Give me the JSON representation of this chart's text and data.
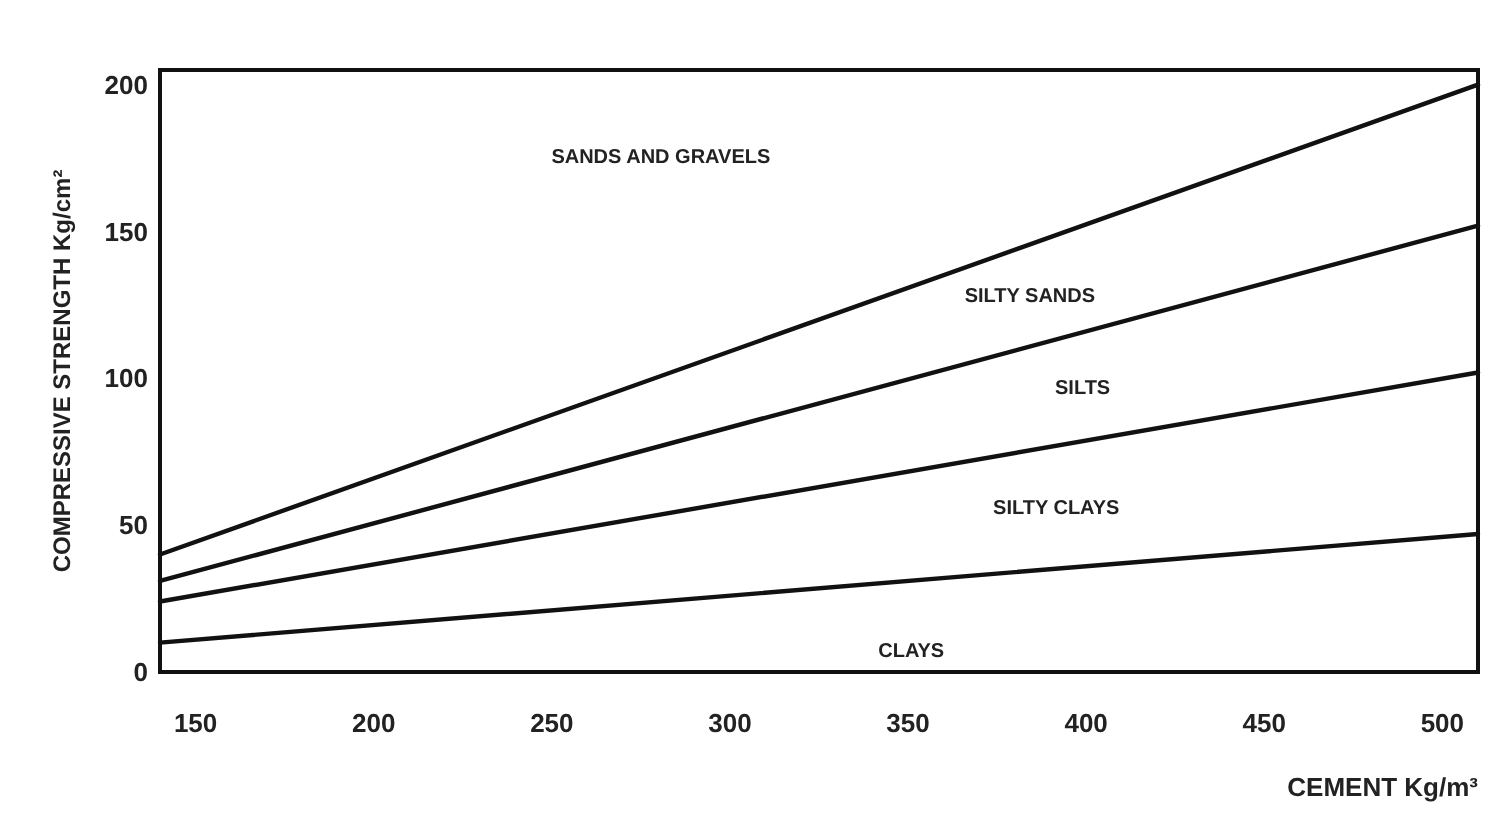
{
  "chart_data": {
    "type": "line",
    "xlabel": "CEMENT Kg/m³",
    "ylabel": "COMPRESSIVE STRENGTH  Kg/cm²",
    "xlim": [
      140,
      510
    ],
    "ylim": [
      0,
      205
    ],
    "xticks": [
      150,
      200,
      250,
      300,
      350,
      400,
      450,
      500
    ],
    "yticks": [
      0,
      50,
      100,
      150,
      200
    ],
    "line_style": "solid",
    "x": [
      140,
      510
    ],
    "series": [
      {
        "color": "#111111",
        "values": [
          40,
          200
        ]
      },
      {
        "color": "#111111",
        "values": [
          31,
          152
        ]
      },
      {
        "color": "#111111",
        "values": [
          24,
          102
        ]
      },
      {
        "color": "#111111",
        "values": [
          10,
          47
        ]
      }
    ],
    "annotations": [
      "SANDS AND GRAVELS",
      "SILTY SANDS",
      "SILTS",
      "SILTY CLAYS",
      "CLAYS"
    ]
  }
}
